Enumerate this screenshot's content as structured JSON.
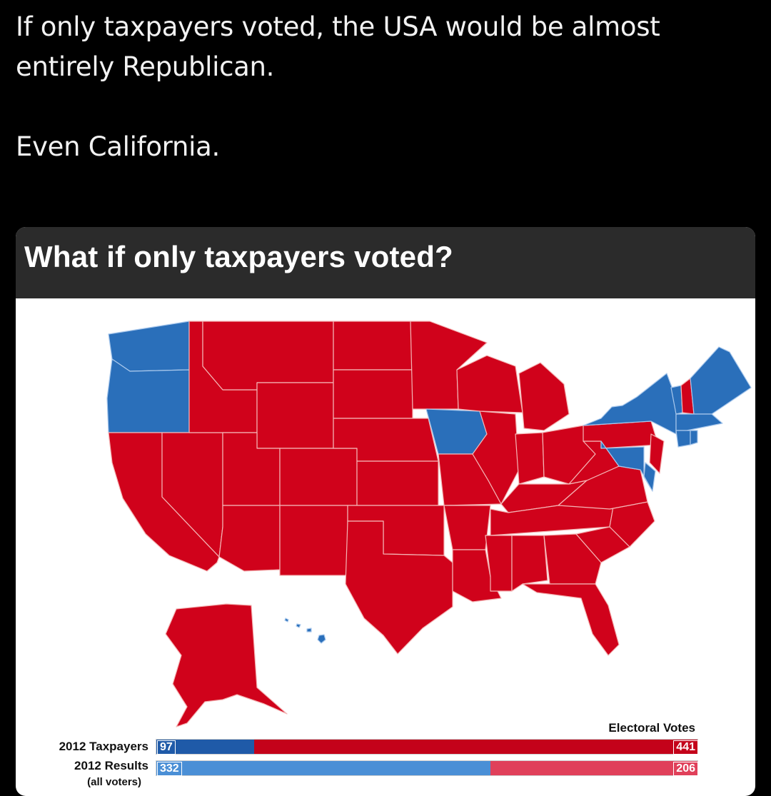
{
  "post": {
    "line1": "If only taxpayers voted, the USA would be almost",
    "line2": "entirely Republican.",
    "line3": "Even California."
  },
  "card": {
    "title": "What if only taxpayers voted?"
  },
  "map": {
    "republican_color": "#d0021b",
    "democrat_color": "#2a6fba",
    "democrat_states": [
      "Washington",
      "Oregon",
      "Iowa",
      "New York",
      "Vermont",
      "Maine",
      "Massachusetts",
      "Rhode Island",
      "Connecticut",
      "Delaware",
      "Maryland",
      "Hawaii"
    ],
    "republican_states": [
      "California",
      "Nevada",
      "Idaho",
      "Montana",
      "Wyoming",
      "Utah",
      "Arizona",
      "Colorado",
      "New Mexico",
      "North Dakota",
      "South Dakota",
      "Nebraska",
      "Kansas",
      "Oklahoma",
      "Texas",
      "Minnesota",
      "Missouri",
      "Arkansas",
      "Louisiana",
      "Wisconsin",
      "Illinois",
      "Michigan",
      "Indiana",
      "Ohio",
      "Kentucky",
      "Tennessee",
      "Mississippi",
      "Alabama",
      "Georgia",
      "Florida",
      "South Carolina",
      "North Carolina",
      "Virginia",
      "West Virginia",
      "Pennsylvania",
      "New Jersey",
      "New Hampshire",
      "Alaska"
    ]
  },
  "legend": {
    "header": "Electoral Votes",
    "rows": [
      {
        "label": "2012 Taxpayers",
        "sublabel": "",
        "dem": 97,
        "rep": 441
      },
      {
        "label": "2012 Results",
        "sublabel": "(all voters)",
        "dem": 332,
        "rep": 206
      }
    ]
  }
}
